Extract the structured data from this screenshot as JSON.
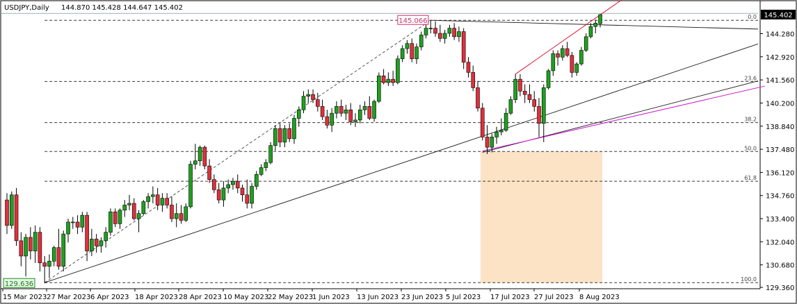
{
  "header": {
    "symbol_tf": "USDJPY,Daily",
    "ohlc": "144.870 145.428 144.647 145.402"
  },
  "colors": {
    "bull": "#1fa01f",
    "bear": "#e0303a",
    "wick": "#000000",
    "trend": "#1a1a1a",
    "channel_red": "#e01030",
    "magenta": "#d020d0",
    "fib": "#333333",
    "zone": "#fde3c6",
    "price_box_border": "#000000",
    "low_label": "#1f8f1f",
    "high_label": "#d0306a"
  },
  "chart_data": {
    "type": "candlestick",
    "symbol": "USDJPY",
    "timeframe": "Daily",
    "ylim": [
      129.0,
      146.2
    ],
    "y_ticks": [
      "145.402",
      "144.280",
      "142.920",
      "141.560",
      "140.200",
      "138.840",
      "137.480",
      "136.120",
      "134.760",
      "133.400",
      "132.040",
      "130.680",
      "129.360"
    ],
    "x_ticks": [
      "15 Mar 2023",
      "27 Mar 2023",
      "6 Apr 2023",
      "18 Apr 2023",
      "28 Apr 2023",
      "10 May 2023",
      "22 May 2023",
      "1 Jun 2023",
      "13 Jun 2023",
      "23 Jun 2023",
      "5 Jul 2023",
      "17 Jul 2023",
      "27 Jul 2023",
      "8 Aug 2023"
    ],
    "last_price": "145.402",
    "swing_low_label": "129.636",
    "swing_high_label": "145.066",
    "fib_levels": [
      {
        "label": "0.0",
        "value": 145.066
      },
      {
        "label": "23.6",
        "value": 141.47
      },
      {
        "label": "38.2",
        "value": 139.05
      },
      {
        "label": "50.0",
        "value": 137.35
      },
      {
        "label": "61.8",
        "value": 135.6
      },
      {
        "label": "100.0",
        "value": 129.636
      }
    ],
    "candles": [
      [
        134.5,
        134.9,
        132.5,
        133.0
      ],
      [
        133.0,
        135.0,
        132.8,
        134.8
      ],
      [
        134.8,
        135.2,
        131.8,
        132.1
      ],
      [
        132.1,
        132.6,
        130.6,
        131.2
      ],
      [
        131.2,
        132.5,
        130.0,
        132.3
      ],
      [
        132.3,
        132.9,
        131.0,
        131.5
      ],
      [
        131.5,
        133.0,
        130.8,
        132.6
      ],
      [
        132.6,
        132.9,
        130.3,
        130.8
      ],
      [
        130.8,
        131.2,
        129.6,
        130.6
      ],
      [
        130.6,
        131.3,
        129.9,
        130.9
      ],
      [
        130.9,
        131.8,
        130.6,
        131.7
      ],
      [
        131.7,
        132.8,
        130.4,
        130.6
      ],
      [
        130.6,
        132.7,
        130.3,
        132.5
      ],
      [
        132.5,
        133.4,
        132.0,
        133.2
      ],
      [
        133.2,
        133.5,
        132.8,
        133.2
      ],
      [
        133.2,
        133.6,
        132.5,
        132.9
      ],
      [
        132.9,
        133.8,
        132.6,
        133.6
      ],
      [
        133.6,
        133.8,
        130.9,
        131.5
      ],
      [
        131.5,
        132.8,
        131.2,
        132.2
      ],
      [
        132.2,
        132.5,
        131.4,
        131.8
      ],
      [
        131.8,
        132.3,
        131.4,
        132.1
      ],
      [
        132.1,
        132.9,
        131.7,
        132.6
      ],
      [
        132.6,
        134.0,
        132.4,
        133.8
      ],
      [
        133.8,
        134.0,
        132.9,
        133.1
      ],
      [
        133.1,
        134.0,
        132.8,
        133.9
      ],
      [
        133.9,
        134.5,
        133.5,
        134.2
      ],
      [
        134.2,
        134.8,
        133.9,
        134.3
      ],
      [
        134.3,
        134.6,
        133.3,
        133.4
      ],
      [
        133.4,
        133.9,
        132.6,
        133.7
      ],
      [
        133.7,
        134.5,
        133.6,
        134.4
      ],
      [
        134.4,
        134.9,
        134.0,
        134.7
      ],
      [
        134.7,
        135.3,
        134.3,
        134.8
      ],
      [
        134.8,
        135.2,
        133.9,
        134.2
      ],
      [
        134.2,
        134.9,
        133.8,
        134.6
      ],
      [
        134.6,
        134.9,
        134.0,
        134.2
      ],
      [
        134.2,
        134.7,
        133.2,
        133.4
      ],
      [
        133.4,
        134.3,
        132.9,
        133.7
      ],
      [
        133.7,
        134.2,
        133.1,
        133.3
      ],
      [
        133.3,
        134.3,
        133.2,
        134.1
      ],
      [
        134.1,
        136.8,
        134.0,
        136.6
      ],
      [
        136.6,
        137.8,
        136.3,
        136.8
      ],
      [
        136.8,
        137.7,
        136.5,
        137.6
      ],
      [
        137.6,
        137.7,
        136.3,
        136.5
      ],
      [
        136.5,
        136.9,
        135.5,
        135.7
      ],
      [
        135.7,
        136.0,
        134.9,
        135.1
      ],
      [
        135.1,
        135.5,
        134.3,
        134.5
      ],
      [
        134.5,
        135.6,
        134.1,
        135.2
      ],
      [
        135.2,
        135.7,
        134.9,
        135.4
      ],
      [
        135.4,
        135.8,
        135.1,
        135.6
      ],
      [
        135.6,
        136.0,
        134.9,
        135.2
      ],
      [
        135.2,
        135.4,
        134.4,
        134.8
      ],
      [
        134.8,
        135.7,
        134.0,
        134.3
      ],
      [
        134.3,
        135.5,
        134.0,
        135.3
      ],
      [
        135.3,
        136.2,
        135.1,
        136.0
      ],
      [
        136.0,
        136.6,
        135.9,
        136.4
      ],
      [
        136.4,
        136.9,
        136.2,
        136.7
      ],
      [
        136.7,
        137.9,
        136.6,
        137.7
      ],
      [
        137.7,
        138.9,
        137.4,
        138.7
      ],
      [
        138.7,
        139.0,
        137.6,
        137.9
      ],
      [
        137.9,
        138.9,
        137.6,
        138.7
      ],
      [
        138.7,
        139.0,
        137.9,
        138.1
      ],
      [
        138.1,
        139.5,
        137.8,
        139.3
      ],
      [
        139.3,
        140.0,
        138.8,
        139.8
      ],
      [
        139.8,
        140.9,
        139.6,
        140.6
      ],
      [
        140.6,
        141.0,
        140.2,
        140.7
      ],
      [
        140.7,
        141.0,
        140.2,
        140.4
      ],
      [
        140.4,
        140.8,
        139.7,
        140.0
      ],
      [
        140.0,
        140.4,
        139.2,
        139.4
      ],
      [
        139.4,
        139.8,
        138.7,
        138.9
      ],
      [
        138.9,
        139.9,
        138.5,
        139.6
      ],
      [
        139.6,
        140.3,
        139.3,
        140.0
      ],
      [
        140.0,
        140.4,
        139.4,
        139.6
      ],
      [
        139.6,
        140.1,
        139.2,
        139.8
      ],
      [
        139.8,
        140.2,
        138.9,
        139.1
      ],
      [
        139.1,
        139.6,
        138.8,
        139.2
      ],
      [
        139.2,
        140.1,
        139.0,
        139.8
      ],
      [
        139.8,
        140.3,
        139.5,
        140.0
      ],
      [
        140.0,
        140.6,
        139.2,
        139.3
      ],
      [
        139.3,
        140.4,
        139.1,
        140.3
      ],
      [
        140.3,
        142.0,
        140.2,
        141.8
      ],
      [
        141.8,
        142.2,
        141.3,
        141.4
      ],
      [
        141.4,
        142.0,
        141.2,
        141.6
      ],
      [
        141.6,
        142.1,
        141.2,
        141.4
      ],
      [
        141.4,
        143.0,
        141.3,
        142.8
      ],
      [
        142.8,
        143.6,
        142.6,
        143.4
      ],
      [
        143.4,
        143.9,
        143.1,
        143.7
      ],
      [
        143.7,
        144.0,
        142.6,
        142.8
      ],
      [
        142.8,
        143.7,
        142.5,
        143.5
      ],
      [
        143.5,
        144.4,
        143.3,
        144.2
      ],
      [
        144.2,
        144.9,
        144.0,
        144.6
      ],
      [
        144.6,
        145.07,
        144.3,
        144.6
      ],
      [
        144.6,
        145.0,
        144.1,
        144.3
      ],
      [
        144.3,
        144.8,
        143.8,
        144.0
      ],
      [
        144.0,
        144.5,
        143.7,
        144.3
      ],
      [
        144.3,
        144.8,
        144.1,
        144.6
      ],
      [
        144.6,
        144.9,
        143.9,
        144.1
      ],
      [
        144.1,
        144.7,
        143.8,
        144.4
      ],
      [
        144.4,
        144.6,
        142.2,
        142.6
      ],
      [
        142.6,
        142.9,
        141.7,
        142.0
      ],
      [
        142.0,
        142.4,
        140.9,
        141.1
      ],
      [
        141.1,
        141.5,
        139.7,
        139.9
      ],
      [
        139.9,
        140.2,
        138.0,
        138.2
      ],
      [
        138.2,
        138.9,
        137.2,
        137.6
      ],
      [
        137.6,
        138.4,
        137.3,
        138.2
      ],
      [
        138.2,
        138.8,
        137.8,
        138.5
      ],
      [
        138.5,
        139.3,
        138.3,
        138.6
      ],
      [
        138.6,
        139.9,
        138.5,
        139.6
      ],
      [
        139.6,
        140.6,
        139.5,
        140.4
      ],
      [
        140.4,
        141.9,
        140.2,
        141.6
      ],
      [
        141.6,
        141.9,
        140.6,
        140.9
      ],
      [
        140.9,
        141.3,
        140.2,
        140.7
      ],
      [
        140.7,
        141.3,
        140.2,
        140.4
      ],
      [
        140.4,
        140.9,
        139.7,
        140.0
      ],
      [
        140.0,
        140.5,
        138.2,
        139.0
      ],
      [
        139.0,
        141.3,
        137.9,
        141.1
      ],
      [
        141.1,
        142.2,
        141.0,
        142.1
      ],
      [
        142.1,
        143.3,
        141.8,
        143.1
      ],
      [
        143.1,
        143.3,
        142.4,
        142.9
      ],
      [
        142.9,
        143.6,
        142.7,
        143.4
      ],
      [
        143.4,
        143.8,
        142.9,
        143.0
      ],
      [
        143.0,
        143.2,
        141.7,
        142.0
      ],
      [
        142.0,
        142.6,
        141.8,
        142.5
      ],
      [
        142.5,
        143.5,
        142.4,
        143.3
      ],
      [
        143.3,
        144.3,
        143.2,
        144.1
      ],
      [
        144.1,
        144.9,
        144.0,
        144.7
      ],
      [
        144.7,
        145.1,
        144.3,
        144.9
      ],
      [
        144.87,
        145.43,
        144.65,
        145.4
      ]
    ]
  }
}
